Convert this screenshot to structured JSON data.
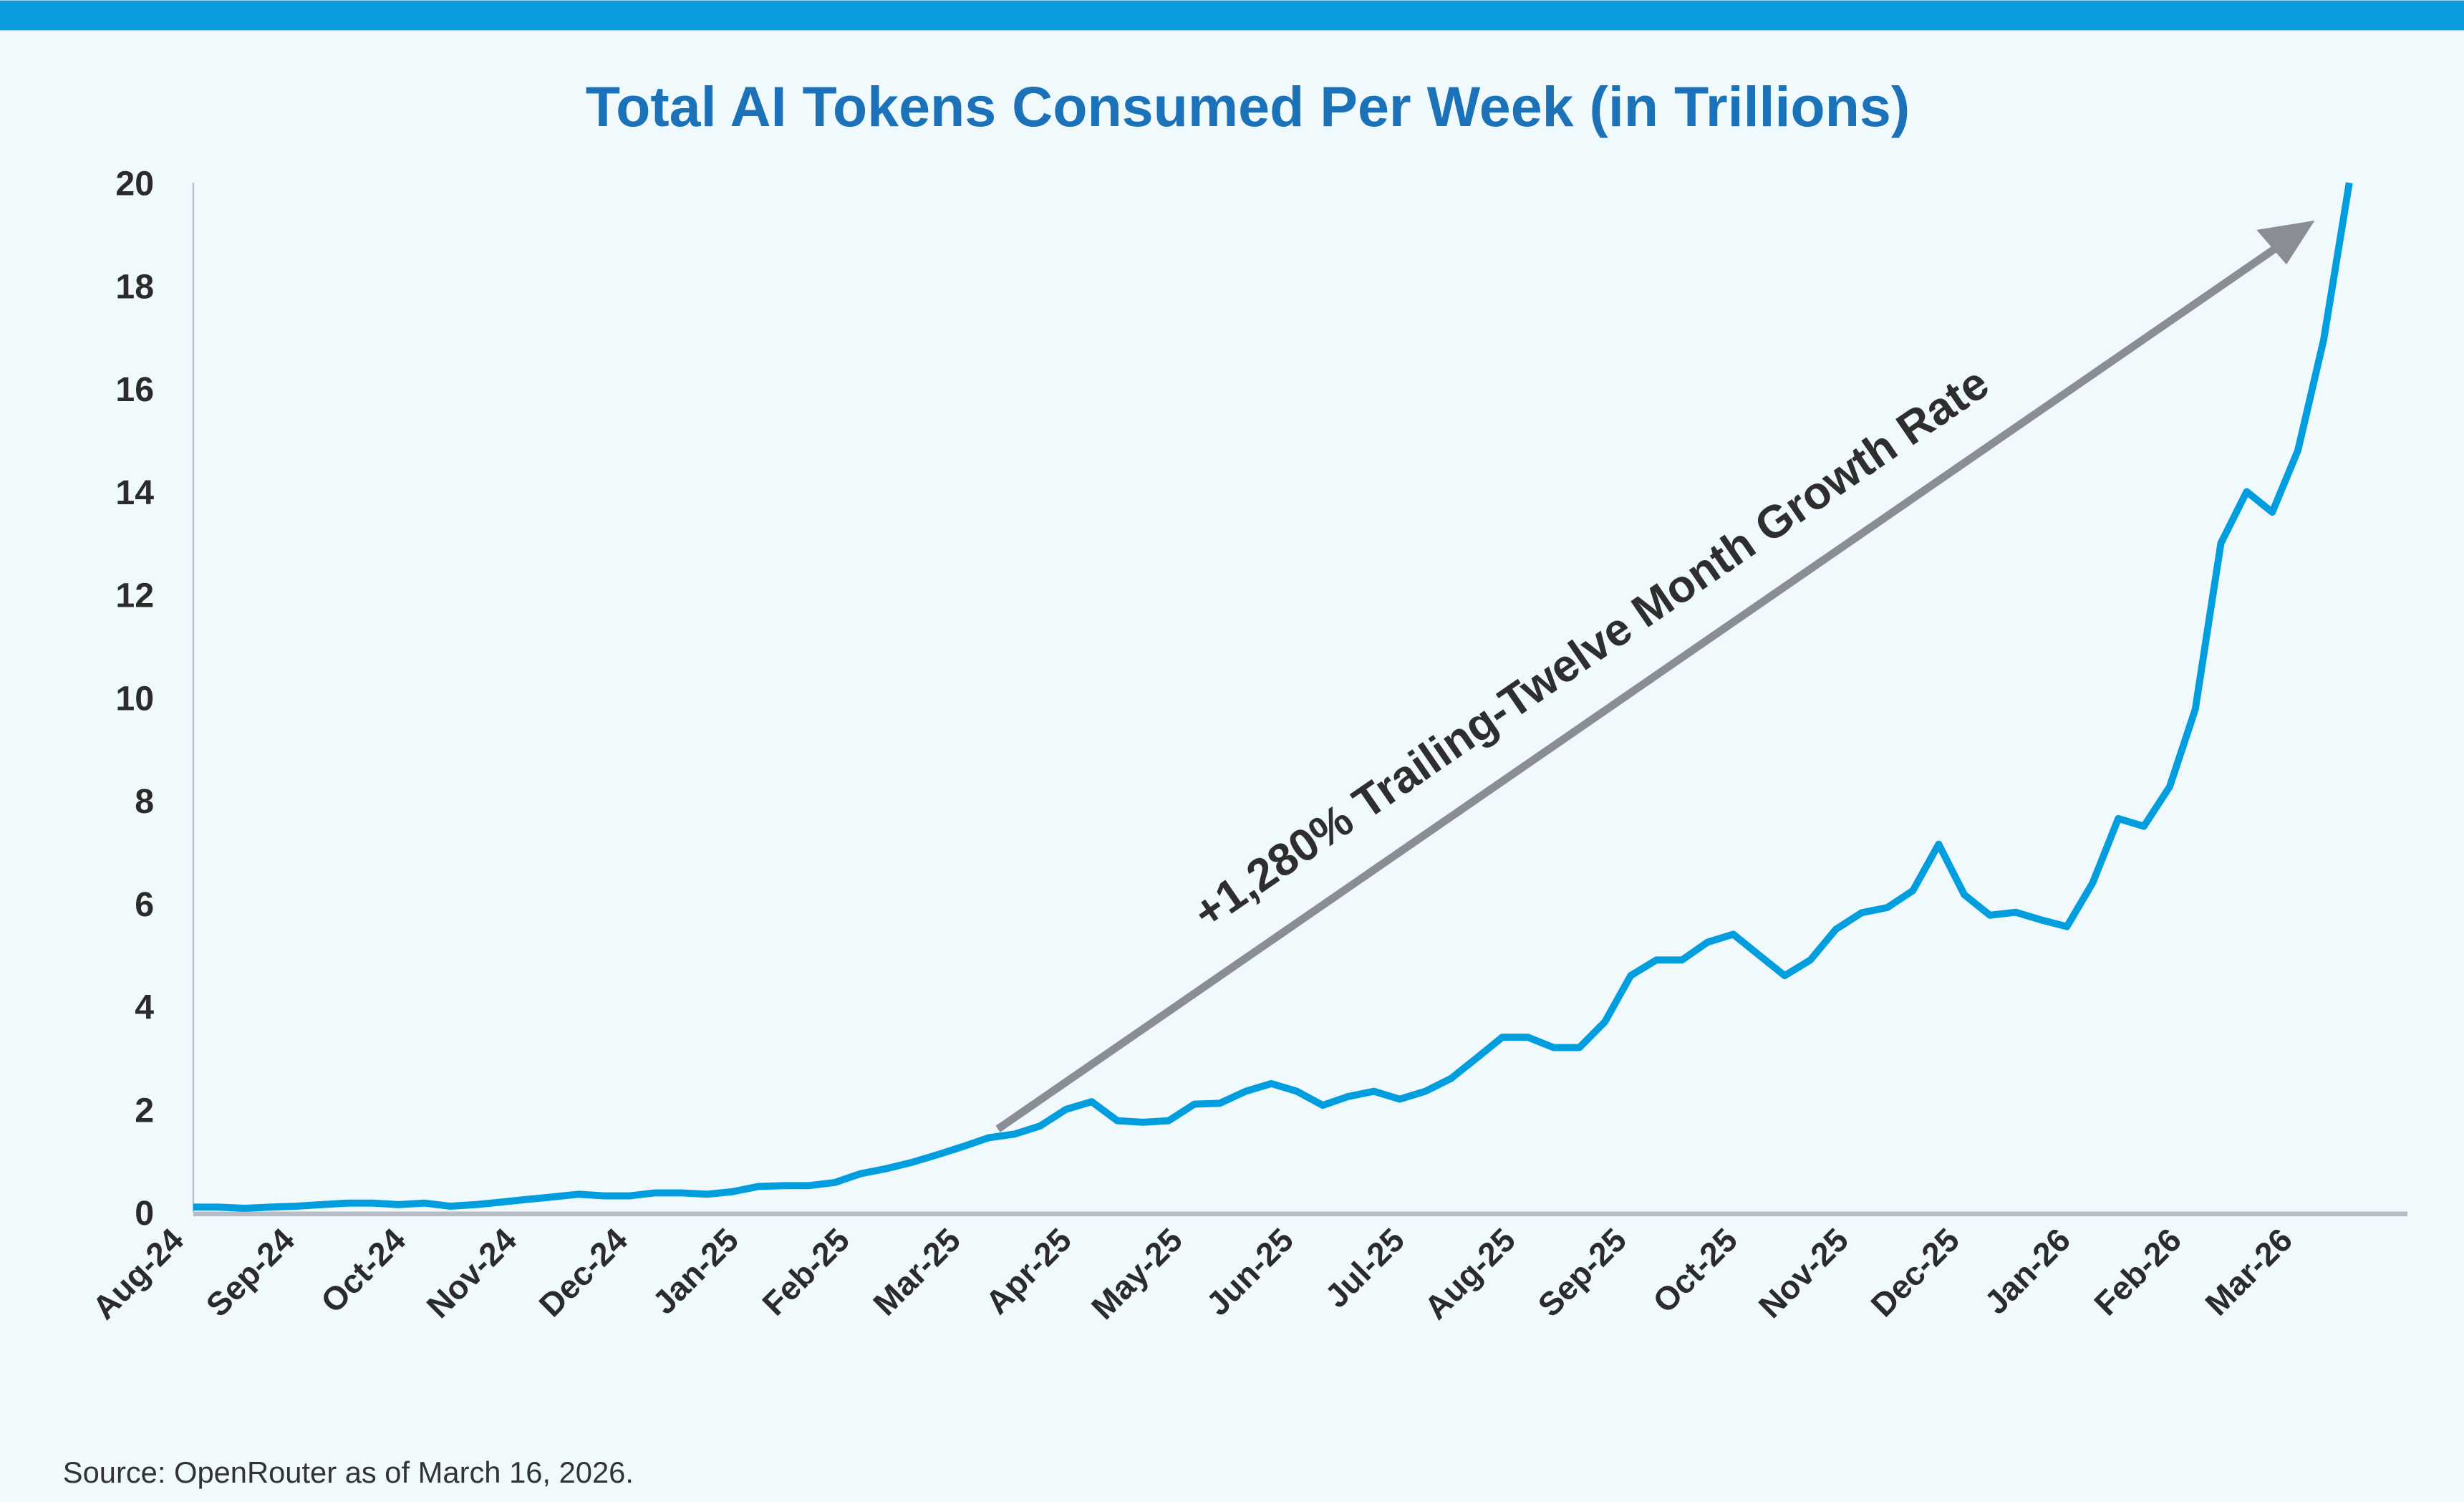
{
  "chart_data": {
    "type": "line",
    "title": "Total AI Tokens Consumed Per Week (in Trillions)",
    "xlabel": "",
    "ylabel": "",
    "ylim": [
      0,
      20
    ],
    "y_ticks": [
      0,
      2,
      4,
      6,
      8,
      10,
      12,
      14,
      16,
      18,
      20
    ],
    "x_tick_labels": [
      "Aug-24",
      "Sep-24",
      "Oct-24",
      "Nov-24",
      "Dec-24",
      "Jan-25",
      "Feb-25",
      "Mar-25",
      "Apr-25",
      "May-25",
      "Jun-25",
      "Jul-25",
      "Aug-25",
      "Sep-25",
      "Oct-25",
      "Nov-25",
      "Dec-25",
      "Jan-26",
      "Feb-26",
      "Mar-26"
    ],
    "x_frequency": "weekly",
    "grid": false,
    "series": [
      {
        "color": "#009ddf",
        "values": [
          0.1,
          0.1,
          0.08,
          0.1,
          0.12,
          0.15,
          0.18,
          0.18,
          0.15,
          0.18,
          0.12,
          0.15,
          0.2,
          0.25,
          0.3,
          0.35,
          0.32,
          0.32,
          0.38,
          0.38,
          0.35,
          0.4,
          0.5,
          0.52,
          0.52,
          0.58,
          0.75,
          0.85,
          0.97,
          1.12,
          1.28,
          1.45,
          1.52,
          1.68,
          2.0,
          2.15,
          1.78,
          1.75,
          1.78,
          2.1,
          2.12,
          2.35,
          2.5,
          2.35,
          2.08,
          2.25,
          2.35,
          2.2,
          2.35,
          2.6,
          3.0,
          3.4,
          3.4,
          3.2,
          3.2,
          3.7,
          4.6,
          4.9,
          4.9,
          5.25,
          5.4,
          5.0,
          4.6,
          4.9,
          5.5,
          5.82,
          5.92,
          6.25,
          7.15,
          6.17,
          5.77,
          5.83,
          5.68,
          5.55,
          6.4,
          7.65,
          7.5,
          8.27,
          9.77,
          13.0,
          14.0,
          13.6,
          14.8,
          16.95,
          20.0
        ]
      }
    ],
    "annotation": "+1,280% Trailing-Twelve Month Growth Rate",
    "source": "Source: OpenRouter as of March 16, 2026."
  },
  "colors": {
    "accent": "#0a9ee0",
    "title": "#1b72b8",
    "line": "#009ddf",
    "arrow": "#8a8d96",
    "axis": "#b8bcc6",
    "background": "#f0fafd"
  }
}
